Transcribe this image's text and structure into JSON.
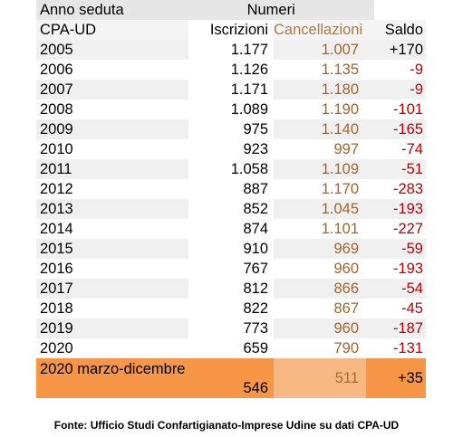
{
  "chart_data": {
    "type": "table",
    "header_top": {
      "col1": "Anno seduta",
      "group": "Numeri"
    },
    "header": {
      "col1": "CPA-UD",
      "iscrizioni": "Iscrizioni",
      "cancellazioni": "Cancellazioni",
      "saldo": "Saldo"
    },
    "rows": [
      {
        "anno": "2005",
        "iscrizioni": "1.177",
        "cancellazioni": "1.007",
        "saldo": "+170"
      },
      {
        "anno": "2006",
        "iscrizioni": "1.126",
        "cancellazioni": "1.135",
        "saldo": "-9"
      },
      {
        "anno": "2007",
        "iscrizioni": "1.171",
        "cancellazioni": "1.180",
        "saldo": "-9"
      },
      {
        "anno": "2008",
        "iscrizioni": "1.089",
        "cancellazioni": "1.190",
        "saldo": "-101"
      },
      {
        "anno": "2009",
        "iscrizioni": "975",
        "cancellazioni": "1.140",
        "saldo": "-165"
      },
      {
        "anno": "2010",
        "iscrizioni": "923",
        "cancellazioni": "997",
        "saldo": "-74"
      },
      {
        "anno": "2011",
        "iscrizioni": "1.058",
        "cancellazioni": "1.109",
        "saldo": "-51"
      },
      {
        "anno": "2012",
        "iscrizioni": "887",
        "cancellazioni": "1.170",
        "saldo": "-283"
      },
      {
        "anno": "2013",
        "iscrizioni": "852",
        "cancellazioni": "1.045",
        "saldo": "-193"
      },
      {
        "anno": "2014",
        "iscrizioni": "874",
        "cancellazioni": "1.101",
        "saldo": "-227"
      },
      {
        "anno": "2015",
        "iscrizioni": "910",
        "cancellazioni": "969",
        "saldo": "-59"
      },
      {
        "anno": "2016",
        "iscrizioni": "767",
        "cancellazioni": "960",
        "saldo": "-193"
      },
      {
        "anno": "2017",
        "iscrizioni": "812",
        "cancellazioni": "866",
        "saldo": "-54"
      },
      {
        "anno": "2018",
        "iscrizioni": "822",
        "cancellazioni": "867",
        "saldo": "-45"
      },
      {
        "anno": "2019",
        "iscrizioni": "773",
        "cancellazioni": "960",
        "saldo": "-187"
      },
      {
        "anno": "2020",
        "iscrizioni": "659",
        "cancellazioni": "790",
        "saldo": "-131"
      }
    ],
    "highlight_row": {
      "anno": "2020 marzo-dicembre",
      "iscrizioni": "546",
      "cancellazioni": "511",
      "saldo": "+35"
    },
    "colors": {
      "cancellazioni": "#a5642a",
      "saldo_negative": "#c00000",
      "highlight": "#f79646"
    }
  },
  "source": "Fonte: Ufficio Studi Confartigianato-Imprese Udine su dati CPA-UD"
}
